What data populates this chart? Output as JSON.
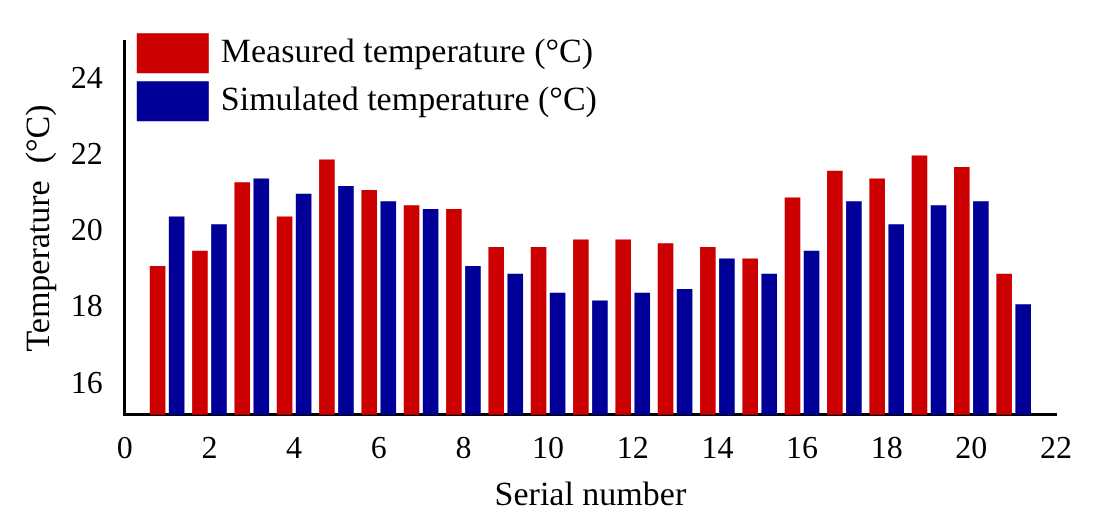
{
  "chart_data": {
    "type": "bar",
    "xlabel": "Serial number",
    "ylabel": "Temperature  (°C)",
    "x": [
      1,
      2,
      3,
      4,
      5,
      6,
      7,
      8,
      9,
      10,
      11,
      12,
      13,
      14,
      15,
      16,
      17,
      18,
      19,
      20,
      21
    ],
    "series": [
      {
        "name": "Measured temperature (°C)",
        "color": "#cc0000",
        "values": [
          19.1,
          19.5,
          21.3,
          20.4,
          21.9,
          21.1,
          20.7,
          20.6,
          19.6,
          19.6,
          19.8,
          19.8,
          19.7,
          19.6,
          19.3,
          20.9,
          21.6,
          21.4,
          22.0,
          21.7,
          18.9
        ]
      },
      {
        "name": "Simulated temperature (°C)",
        "color": "#000099",
        "values": [
          20.4,
          20.2,
          21.4,
          21.0,
          21.2,
          20.8,
          20.6,
          19.1,
          18.9,
          18.4,
          18.2,
          18.4,
          18.5,
          19.3,
          18.9,
          19.5,
          20.8,
          20.2,
          20.7,
          20.8,
          18.1
        ]
      }
    ],
    "xlim": [
      0,
      22
    ],
    "xticks": [
      0,
      2,
      4,
      6,
      8,
      10,
      12,
      14,
      16,
      18,
      20,
      22
    ],
    "ylim": [
      15.2,
      25
    ],
    "yticks": [
      16,
      18,
      20,
      22,
      24
    ],
    "grid": false,
    "legend": "top left"
  }
}
